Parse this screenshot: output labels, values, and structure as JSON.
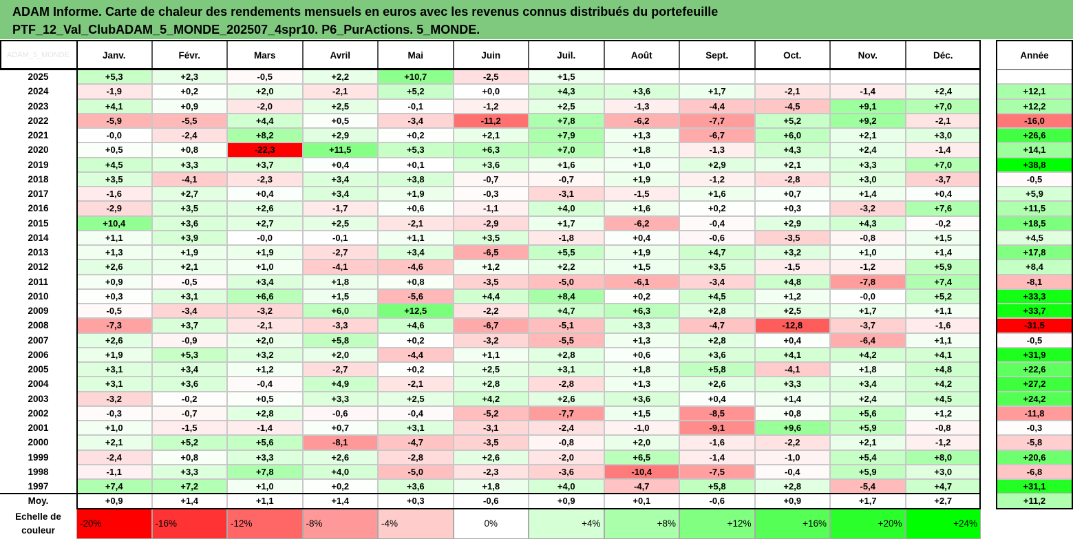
{
  "title_line1": "ADAM Informe. Carte de chaleur des rendements mensuels en euros avec les revenus connus distribués du portefeuille",
  "title_line2": "PTF_12_Val_ClubADAM_5_MONDE_202507_4spr10. P6_PurActions. 5_MONDE.",
  "corner_watermark": "ADAM_5_MONDE",
  "colors": {
    "header_bg": "#7fc97f",
    "max_red": "#ff0000",
    "max_green": "#00ff00"
  },
  "chart_data": {
    "type": "heatmap",
    "columns": [
      "Janv.",
      "Févr.",
      "Mars",
      "Avril",
      "Mai",
      "Juin",
      "Juil.",
      "Août",
      "Sept.",
      "Oct.",
      "Nov.",
      "Déc."
    ],
    "year_column": "Année",
    "rows": [
      {
        "label": "2025",
        "values": [
          "+5,3",
          "+2,3",
          "-0,5",
          "+2,2",
          "+10,7",
          "-2,5",
          "+1,5",
          "",
          "",
          "",
          "",
          ""
        ],
        "year": ""
      },
      {
        "label": "2024",
        "values": [
          "-1,9",
          "+0,2",
          "+2,0",
          "-2,1",
          "+5,2",
          "+0,0",
          "+4,3",
          "+3,6",
          "+1,7",
          "-2,1",
          "-1,4",
          "+2,4"
        ],
        "year": "+12,1"
      },
      {
        "label": "2023",
        "values": [
          "+4,1",
          "+0,9",
          "-2,0",
          "+2,5",
          "-0,1",
          "-1,2",
          "+2,5",
          "-1,3",
          "-4,4",
          "-4,5",
          "+9,1",
          "+7,0"
        ],
        "year": "+12,2"
      },
      {
        "label": "2022",
        "values": [
          "-5,9",
          "-5,5",
          "+4,4",
          "+0,5",
          "-3,4",
          "-11,2",
          "+7,8",
          "-6,2",
          "-7,7",
          "+5,2",
          "+9,2",
          "-2,1"
        ],
        "year": "-16,0"
      },
      {
        "label": "2021",
        "values": [
          "-0,0",
          "-2,4",
          "+8,2",
          "+2,9",
          "+0,2",
          "+2,1",
          "+7,9",
          "+1,3",
          "-6,7",
          "+6,0",
          "+2,1",
          "+3,0"
        ],
        "year": "+26,6"
      },
      {
        "label": "2020",
        "values": [
          "+0,5",
          "+0,8",
          "-22,3",
          "+11,5",
          "+5,3",
          "+6,3",
          "+7,0",
          "+1,8",
          "-1,3",
          "+4,3",
          "+2,4",
          "-1,4"
        ],
        "year": "+14,1"
      },
      {
        "label": "2019",
        "values": [
          "+4,5",
          "+3,3",
          "+3,7",
          "+0,4",
          "+0,1",
          "+3,6",
          "+1,6",
          "+1,0",
          "+2,9",
          "+2,1",
          "+3,3",
          "+7,0"
        ],
        "year": "+38,8"
      },
      {
        "label": "2018",
        "values": [
          "+3,5",
          "-4,1",
          "-2,3",
          "+3,4",
          "+3,8",
          "-0,7",
          "-0,7",
          "+1,9",
          "-1,2",
          "-2,8",
          "+3,0",
          "-3,7"
        ],
        "year": "-0,5"
      },
      {
        "label": "2017",
        "values": [
          "-1,6",
          "+2,7",
          "+0,4",
          "+3,4",
          "+1,9",
          "-0,3",
          "-3,1",
          "-1,5",
          "+1,6",
          "+0,7",
          "+1,4",
          "+0,4"
        ],
        "year": "+5,9"
      },
      {
        "label": "2016",
        "values": [
          "-2,9",
          "+3,5",
          "+2,6",
          "-1,7",
          "+0,6",
          "-1,1",
          "+4,0",
          "+1,6",
          "+0,2",
          "+0,3",
          "-3,2",
          "+7,6"
        ],
        "year": "+11,5"
      },
      {
        "label": "2015",
        "values": [
          "+10,4",
          "+3,6",
          "+2,7",
          "+2,5",
          "-2,1",
          "-2,9",
          "+1,7",
          "-6,2",
          "-0,4",
          "+2,9",
          "+4,3",
          "-0,2"
        ],
        "year": "+18,5"
      },
      {
        "label": "2014",
        "values": [
          "+1,1",
          "+3,9",
          "-0,0",
          "-0,1",
          "+1,1",
          "+3,5",
          "-1,8",
          "+0,4",
          "-0,6",
          "-3,5",
          "-0,8",
          "+1,5"
        ],
        "year": "+4,5"
      },
      {
        "label": "2013",
        "values": [
          "+1,3",
          "+1,9",
          "+1,9",
          "-2,7",
          "+3,4",
          "-6,5",
          "+5,5",
          "+1,9",
          "+4,7",
          "+3,2",
          "+1,0",
          "+1,4"
        ],
        "year": "+17,8"
      },
      {
        "label": "2012",
        "values": [
          "+2,6",
          "+2,1",
          "+1,0",
          "-4,1",
          "-4,6",
          "+1,2",
          "+2,2",
          "+1,5",
          "+3,5",
          "-1,5",
          "-1,2",
          "+5,9"
        ],
        "year": "+8,4"
      },
      {
        "label": "2011",
        "values": [
          "+0,9",
          "-0,5",
          "+3,4",
          "+1,8",
          "+0,8",
          "-3,5",
          "-5,0",
          "-6,1",
          "-3,4",
          "+4,8",
          "-7,8",
          "+7,4"
        ],
        "year": "-8,1"
      },
      {
        "label": "2010",
        "values": [
          "+0,3",
          "+3,1",
          "+6,6",
          "+1,5",
          "-5,6",
          "+4,4",
          "+8,4",
          "+0,2",
          "+4,5",
          "+1,2",
          "-0,0",
          "+5,2"
        ],
        "year": "+33,3"
      },
      {
        "label": "2009",
        "values": [
          "-0,5",
          "-3,4",
          "-3,2",
          "+6,0",
          "+12,5",
          "-2,2",
          "+4,7",
          "+6,3",
          "+2,8",
          "+2,5",
          "+1,7",
          "+1,1"
        ],
        "year": "+33,7"
      },
      {
        "label": "2008",
        "values": [
          "-7,3",
          "+3,7",
          "-2,1",
          "-3,3",
          "+4,6",
          "-6,7",
          "-5,1",
          "+3,3",
          "-4,7",
          "-12,8",
          "-3,7",
          "-1,6"
        ],
        "year": "-31,5"
      },
      {
        "label": "2007",
        "values": [
          "+2,6",
          "-0,9",
          "+2,0",
          "+5,8",
          "+0,2",
          "-3,2",
          "-5,5",
          "+1,3",
          "+2,8",
          "+0,4",
          "-6,4",
          "+1,1"
        ],
        "year": "-0,5"
      },
      {
        "label": "2006",
        "values": [
          "+1,9",
          "+5,3",
          "+3,2",
          "+2,0",
          "-4,4",
          "+1,1",
          "+2,8",
          "+0,6",
          "+3,6",
          "+4,1",
          "+4,2",
          "+4,1"
        ],
        "year": "+31,9"
      },
      {
        "label": "2005",
        "values": [
          "+3,1",
          "+3,4",
          "+1,2",
          "-2,7",
          "+0,2",
          "+2,5",
          "+3,1",
          "+1,8",
          "+5,8",
          "-4,1",
          "+1,8",
          "+4,8"
        ],
        "year": "+22,6"
      },
      {
        "label": "2004",
        "values": [
          "+3,1",
          "+3,6",
          "-0,4",
          "+4,9",
          "-2,1",
          "+2,8",
          "-2,8",
          "+1,3",
          "+2,6",
          "+3,3",
          "+3,4",
          "+4,2"
        ],
        "year": "+27,2"
      },
      {
        "label": "2003",
        "values": [
          "-3,2",
          "-0,2",
          "+0,5",
          "+3,3",
          "+2,5",
          "+4,2",
          "+2,6",
          "+3,6",
          "+0,4",
          "+1,4",
          "+2,4",
          "+4,5"
        ],
        "year": "+24,2"
      },
      {
        "label": "2002",
        "values": [
          "-0,3",
          "-0,7",
          "+2,8",
          "-0,6",
          "-0,4",
          "-5,2",
          "-7,7",
          "+1,5",
          "-8,5",
          "+0,8",
          "+5,6",
          "+1,2"
        ],
        "year": "-11,8"
      },
      {
        "label": "2001",
        "values": [
          "+1,0",
          "-1,5",
          "-1,4",
          "+0,7",
          "+3,1",
          "-3,1",
          "-2,4",
          "-1,0",
          "-9,1",
          "+9,6",
          "+5,9",
          "-0,8"
        ],
        "year": "-0,3"
      },
      {
        "label": "2000",
        "values": [
          "+2,1",
          "+5,2",
          "+5,6",
          "-8,1",
          "-4,7",
          "-3,5",
          "-0,8",
          "+2,0",
          "-1,6",
          "-2,2",
          "+2,1",
          "-1,2"
        ],
        "year": "-5,8"
      },
      {
        "label": "1999",
        "values": [
          "-2,4",
          "+0,8",
          "+3,3",
          "+2,6",
          "-2,8",
          "+2,6",
          "-2,0",
          "+6,5",
          "-1,4",
          "-1,0",
          "+5,4",
          "+8,0"
        ],
        "year": "+20,6"
      },
      {
        "label": "1998",
        "values": [
          "-1,1",
          "+3,3",
          "+7,8",
          "+4,0",
          "-5,0",
          "-2,3",
          "-3,6",
          "-10,4",
          "-7,5",
          "-0,4",
          "+5,9",
          "+3,0"
        ],
        "year": "-6,8"
      },
      {
        "label": "1997",
        "values": [
          "+7,4",
          "+7,2",
          "+1,0",
          "+0,2",
          "+3,6",
          "+1,8",
          "+4,0",
          "-4,7",
          "+5,8",
          "+2,8",
          "-5,4",
          "+4,7"
        ],
        "year": "+31,1"
      }
    ],
    "average_row": {
      "label": "Moy.",
      "values": [
        "+0,9",
        "+1,4",
        "+1,1",
        "+1,4",
        "+0,3",
        "-0,6",
        "+0,9",
        "+0,1",
        "-0,6",
        "+0,9",
        "+1,7",
        "+2,7"
      ],
      "year": "+11,2"
    },
    "scale_label": "Echelle de couleur",
    "scale": [
      {
        "label": "-20%",
        "value": -20
      },
      {
        "label": "-16%",
        "value": -16
      },
      {
        "label": "-12%",
        "value": -12
      },
      {
        "label": "-8%",
        "value": -8
      },
      {
        "label": "-4%",
        "value": -4
      },
      {
        "label": "0%",
        "value": 0
      },
      {
        "label": "+4%",
        "value": 4
      },
      {
        "label": "+8%",
        "value": 8
      },
      {
        "label": "+12%",
        "value": 12
      },
      {
        "label": "+16%",
        "value": 16
      },
      {
        "label": "+20%",
        "value": 20
      },
      {
        "label": "+24%",
        "value": 24
      }
    ],
    "monthly_color_range": [
      -20,
      24
    ],
    "year_color_range": [
      -30,
      36
    ]
  }
}
